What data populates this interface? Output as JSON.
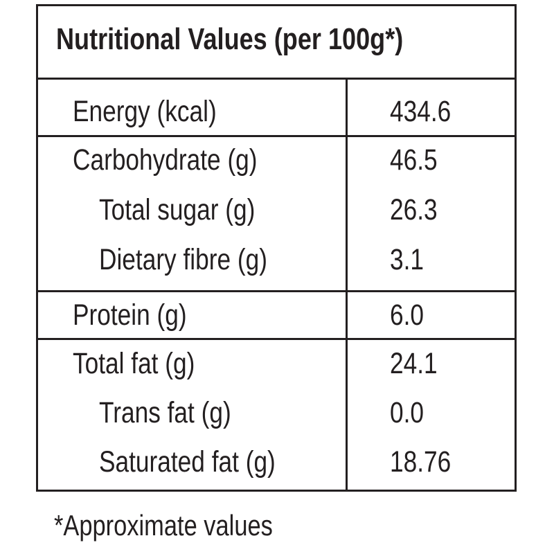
{
  "table": {
    "title": "Nutritional Values (per 100g*)",
    "rows": [
      {
        "label": "Energy (kcal)",
        "value": "434.6"
      },
      {
        "label": "Carbohydrate (g)",
        "value": "46.5"
      },
      {
        "label": "Total sugar (g)",
        "value": "26.3"
      },
      {
        "label": "Dietary fibre (g)",
        "value": "3.1"
      },
      {
        "label": "Protein (g)",
        "value": "6.0"
      },
      {
        "label": "Total fat (g)",
        "value": "24.1"
      },
      {
        "label": "Trans fat (g)",
        "value": "0.0"
      },
      {
        "label": "Saturated fat (g)",
        "value": "18.76"
      }
    ]
  },
  "footnote": "*Approximate values"
}
